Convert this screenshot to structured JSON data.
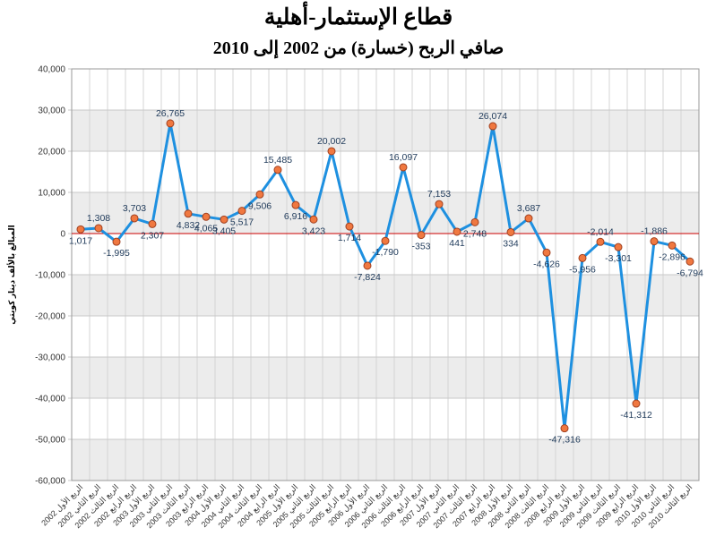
{
  "chart_data": {
    "type": "line",
    "title": "قطاع الإستثمار-أهلية",
    "subtitle": "صافي الربح (خسارة) من 2002 إلى 2010",
    "ylabel": "المبالغ بالألف دينار كويتي",
    "xlabel": "",
    "ylim": [
      -60000,
      40000
    ],
    "ytick_step": 10000,
    "yticks": [
      "-60,000",
      "-50,000",
      "-40,000",
      "-30,000",
      "-20,000",
      "-10,000",
      "0",
      "10,000",
      "20,000",
      "30,000",
      "40,000"
    ],
    "grid": true,
    "legend": "none",
    "colors": {
      "line": "#1e90e0",
      "marker_fill": "#f07840",
      "marker_stroke": "#a04020",
      "zero_line": "#cc0000",
      "band": "#ececec"
    },
    "categories": [
      "2002 الربع الأول",
      "2002 الربع الثاني",
      "2002 الربع الثالث",
      "2002 الربع الرابع",
      "2003 الربع الأول",
      "2003 الربع الثاني",
      "2003 الربع الثالث",
      "2003 الربع الرابع",
      "2004 الربع الأول",
      "2004 الربع الثاني",
      "2004 الربع الثالث",
      "2004 الربع الرابع",
      "2005 الربع الأول",
      "2005 الربع الثاني",
      "2005 الربع الثالث",
      "2005 الربع الرابع",
      "2006 الربع الأول",
      "2006 الربع الثاني",
      "2006 الربع الثالث",
      "2006 الربع الرابع",
      "2007 الربع الأول",
      "2007 الربع الثاني",
      "2007 الربع الثالث",
      "2007 الربع الرابع",
      "2008 الربع الأول",
      "2008 الربع الثاني",
      "2008 الربع الثالث",
      "2008 الربع الرابع",
      "2009 الربع الأول",
      "2009 الربع الثاني",
      "2009 الربع الثالث",
      "2009 الربع الرابع",
      "2010 الربع الأول",
      "2010 الربع الثاني",
      "2010 الربع الثالث"
    ],
    "values": [
      1017,
      1308,
      -1995,
      3703,
      2307,
      26765,
      4832,
      4065,
      3405,
      5517,
      9506,
      15485,
      6916,
      3423,
      20002,
      1714,
      -7824,
      -1790,
      16097,
      -353,
      7153,
      441,
      2748,
      26074,
      334,
      3687,
      -4626,
      -47316,
      -5956,
      -2014,
      -3301,
      -41312,
      -1886,
      -2896,
      -6794
    ],
    "value_labels": [
      "1,017",
      "1,308",
      "-1,995",
      "3,703",
      "2,307",
      "26,765",
      "4,832",
      "4,065",
      "3,405",
      "5,517",
      "9,506",
      "15,485",
      "6,916",
      "3,423",
      "20,002",
      "1,714",
      "-7,824",
      "-1,790",
      "16,097",
      "-353",
      "7,153",
      "441",
      "2,748",
      "26,074",
      "334",
      "3,687",
      "-4,626",
      "-47,316",
      "-5,956",
      "-2,014",
      "-3,301",
      "-41,312",
      "-1,886",
      "-2,896",
      "-6,794"
    ]
  }
}
